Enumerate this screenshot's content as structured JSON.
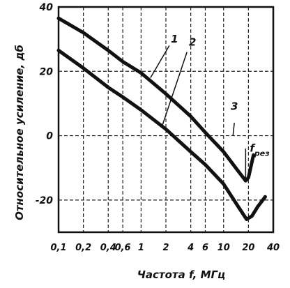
{
  "chart_data": {
    "type": "line",
    "xlabel": "Частота f, МГц",
    "ylabel": "Относительное усиление, дб",
    "x_scale": "log",
    "xlim": [
      0.1,
      40
    ],
    "ylim": [
      -30,
      40
    ],
    "grid": "dashed",
    "x_ticks": [
      {
        "value": 0.1,
        "label": "0,1"
      },
      {
        "value": 0.2,
        "label": "0,2"
      },
      {
        "value": 0.4,
        "label": "0,4"
      },
      {
        "value": 0.6,
        "label": "0,6"
      },
      {
        "value": 1,
        "label": "1"
      },
      {
        "value": 2,
        "label": "2"
      },
      {
        "value": 4,
        "label": "4"
      },
      {
        "value": 6,
        "label": "6"
      },
      {
        "value": 10,
        "label": "10"
      },
      {
        "value": 20,
        "label": "20"
      },
      {
        "value": 40,
        "label": "40"
      }
    ],
    "y_ticks": [
      {
        "value": 40,
        "label": "40"
      },
      {
        "value": 20,
        "label": "20"
      },
      {
        "value": 0,
        "label": "0"
      },
      {
        "value": -20,
        "label": "-20"
      }
    ],
    "series": [
      {
        "name": "1",
        "x": [
          0.1,
          0.2,
          0.4,
          0.6,
          1,
          2,
          4,
          6,
          10,
          15,
          18.5,
          20,
          23
        ],
        "values": [
          36.5,
          32,
          26.5,
          23,
          19.5,
          13,
          6,
          1,
          -5,
          -11,
          -14,
          -13,
          -6
        ]
      },
      {
        "name": "2",
        "x": [
          0.1,
          0.2,
          0.4,
          0.6,
          1,
          2,
          4,
          6,
          10,
          15,
          19,
          22,
          26,
          32
        ],
        "values": [
          26.5,
          21,
          15,
          12,
          8,
          2,
          -5,
          -9,
          -15,
          -22,
          -26,
          -25,
          -22,
          -19
        ]
      }
    ],
    "annotations": [
      {
        "text": "1",
        "target": "series 1"
      },
      {
        "text": "2",
        "target": "series 2"
      },
      {
        "text": "3",
        "target": "dashed 0 dB line"
      },
      {
        "text": "f",
        "subscript": "рез",
        "target": "resonance line at 18.5 MHz"
      }
    ]
  }
}
